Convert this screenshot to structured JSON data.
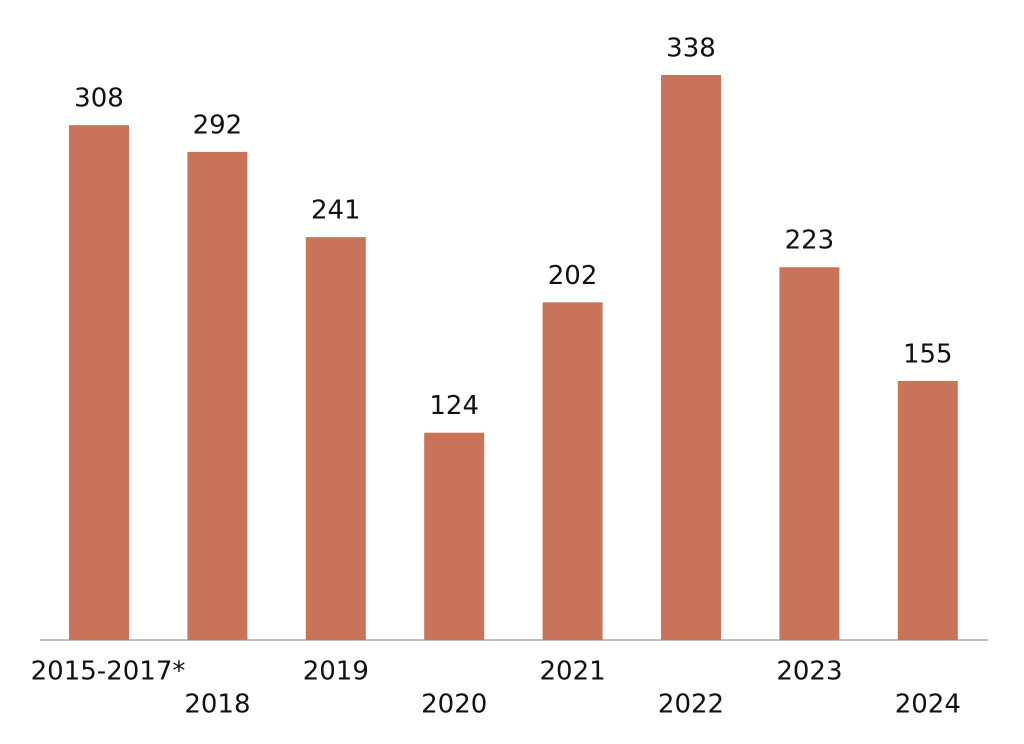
{
  "chart_data": {
    "type": "bar",
    "categories": [
      "2015-2017*",
      "2018",
      "2019",
      "2020",
      "2021",
      "2022",
      "2023",
      "2024"
    ],
    "values": [
      308,
      292,
      241,
      124,
      202,
      338,
      223,
      155
    ],
    "color": "#c8735a"
  }
}
